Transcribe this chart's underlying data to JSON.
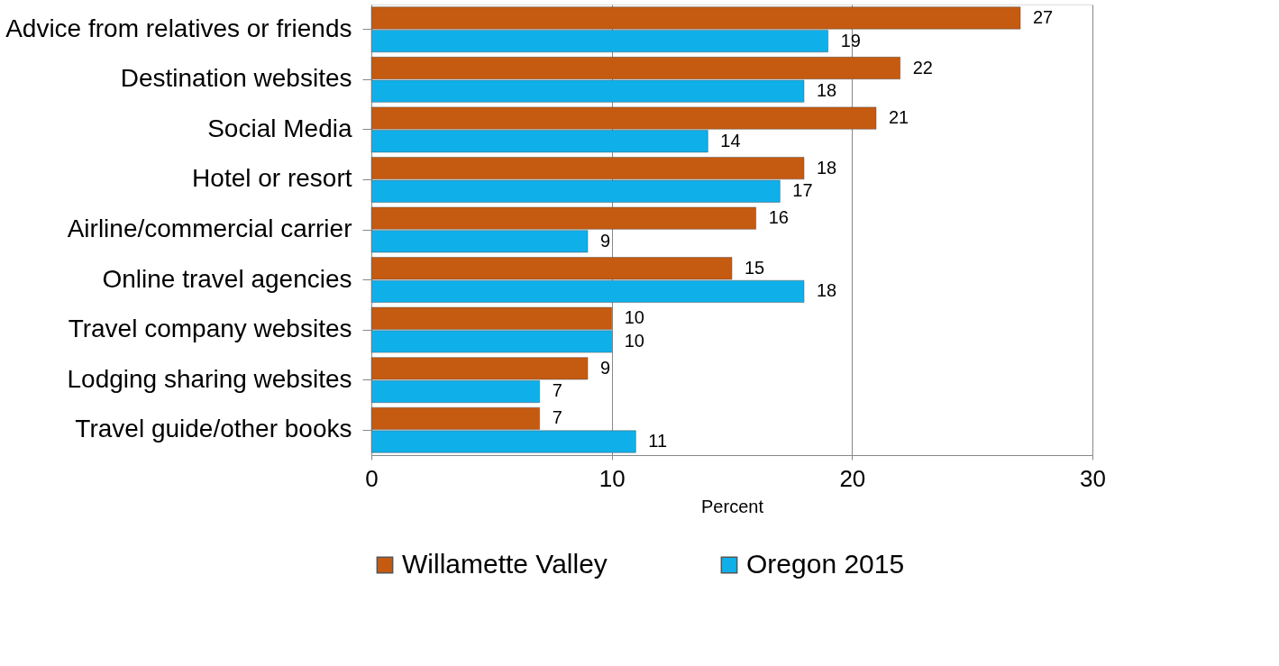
{
  "chart_data": {
    "type": "bar",
    "orientation": "horizontal",
    "categories": [
      "Advice from relatives or friends",
      "Destination websites",
      "Social Media",
      "Hotel or resort",
      "Airline/commercial carrier",
      "Online travel agencies",
      "Travel company websites",
      "Lodging sharing websites",
      "Travel guide/other books"
    ],
    "series": [
      {
        "name": "Willamette Valley",
        "color": "#c55a11",
        "values": [
          27,
          22,
          21,
          18,
          16,
          15,
          10,
          9,
          7
        ]
      },
      {
        "name": "Oregon 2015",
        "color": "#0fb0ea",
        "values": [
          19,
          18,
          14,
          17,
          9,
          18,
          10,
          7,
          11
        ]
      }
    ],
    "xlim": [
      0,
      30
    ],
    "xticks": [
      0,
      10,
      20,
      30
    ],
    "xlabel": "Percent",
    "grid": "x",
    "legend": "bottom",
    "data_labels": true
  }
}
